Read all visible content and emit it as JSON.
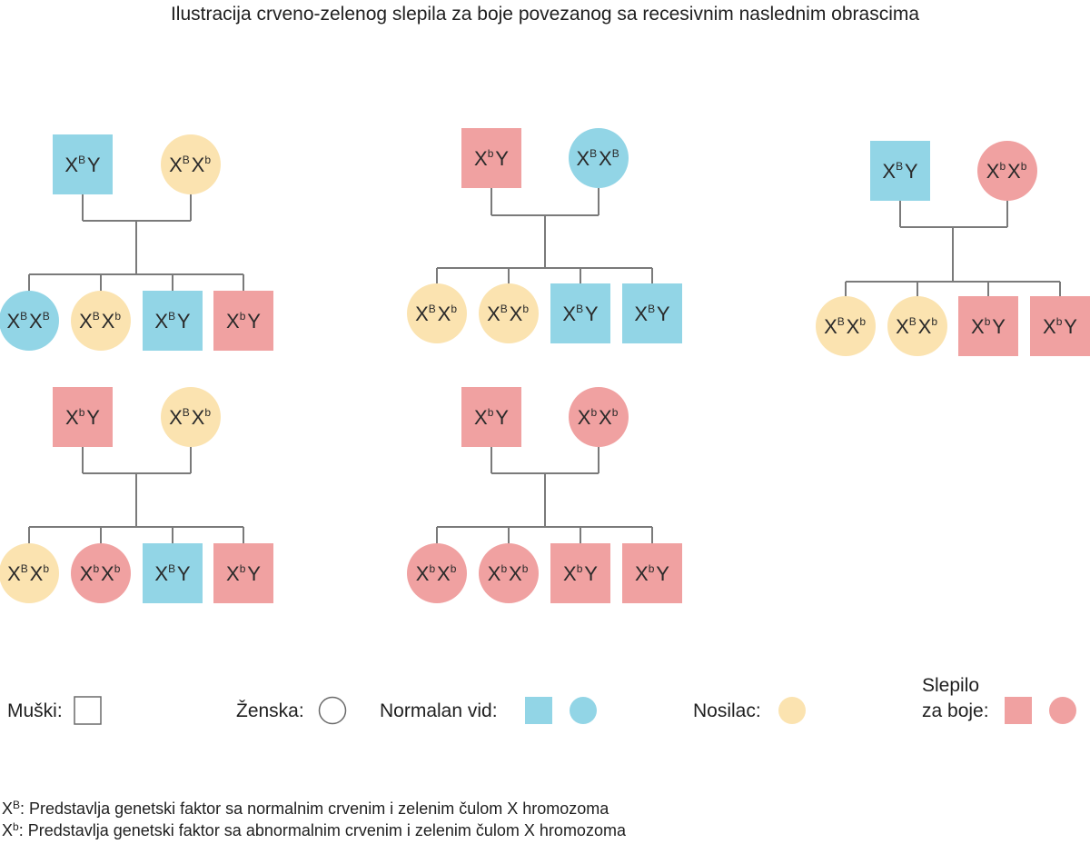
{
  "title": "Ilustracija crveno-zelenog slepila za boje povezanog sa recesivnim naslednim obrascima",
  "colors": {
    "normal": "#92d5e6",
    "carrier": "#fbe3b0",
    "blind": "#f0a1a1",
    "line": "#7a7a7a"
  },
  "families": [
    {
      "father": {
        "shape": "square",
        "status": "normal",
        "genotype": [
          "X",
          "B",
          "Y",
          ""
        ]
      },
      "mother": {
        "shape": "circle",
        "status": "carrier",
        "genotype": [
          "X",
          "B",
          "X",
          "b"
        ]
      },
      "children": [
        {
          "shape": "circle",
          "status": "normal",
          "genotype": [
            "X",
            "B",
            "X",
            "B"
          ]
        },
        {
          "shape": "circle",
          "status": "carrier",
          "genotype": [
            "X",
            "B",
            "X",
            "b"
          ]
        },
        {
          "shape": "square",
          "status": "normal",
          "genotype": [
            "X",
            "B",
            "Y",
            ""
          ]
        },
        {
          "shape": "square",
          "status": "blind",
          "genotype": [
            "X",
            "b",
            "Y",
            ""
          ]
        }
      ]
    },
    {
      "father": {
        "shape": "square",
        "status": "blind",
        "genotype": [
          "X",
          "b",
          "Y",
          ""
        ]
      },
      "mother": {
        "shape": "circle",
        "status": "normal",
        "genotype": [
          "X",
          "B",
          "X",
          "B"
        ]
      },
      "children": [
        {
          "shape": "circle",
          "status": "carrier",
          "genotype": [
            "X",
            "B",
            "X",
            "b"
          ]
        },
        {
          "shape": "circle",
          "status": "carrier",
          "genotype": [
            "X",
            "B",
            "X",
            "b"
          ]
        },
        {
          "shape": "square",
          "status": "normal",
          "genotype": [
            "X",
            "B",
            "Y",
            ""
          ]
        },
        {
          "shape": "square",
          "status": "normal",
          "genotype": [
            "X",
            "B",
            "Y",
            ""
          ]
        }
      ]
    },
    {
      "father": {
        "shape": "square",
        "status": "normal",
        "genotype": [
          "X",
          "B",
          "Y",
          ""
        ]
      },
      "mother": {
        "shape": "circle",
        "status": "blind",
        "genotype": [
          "X",
          "b",
          "X",
          "b"
        ]
      },
      "children": [
        {
          "shape": "circle",
          "status": "carrier",
          "genotype": [
            "X",
            "B",
            "X",
            "b"
          ]
        },
        {
          "shape": "circle",
          "status": "carrier",
          "genotype": [
            "X",
            "B",
            "X",
            "b"
          ]
        },
        {
          "shape": "square",
          "status": "blind",
          "genotype": [
            "X",
            "b",
            "Y",
            ""
          ]
        },
        {
          "shape": "square",
          "status": "blind",
          "genotype": [
            "X",
            "b",
            "Y",
            ""
          ]
        }
      ]
    },
    {
      "father": {
        "shape": "square",
        "status": "blind",
        "genotype": [
          "X",
          "b",
          "Y",
          ""
        ]
      },
      "mother": {
        "shape": "circle",
        "status": "carrier",
        "genotype": [
          "X",
          "B",
          "X",
          "b"
        ]
      },
      "children": [
        {
          "shape": "circle",
          "status": "carrier",
          "genotype": [
            "X",
            "B",
            "X",
            "b"
          ]
        },
        {
          "shape": "circle",
          "status": "blind",
          "genotype": [
            "X",
            "b",
            "X",
            "b"
          ]
        },
        {
          "shape": "square",
          "status": "normal",
          "genotype": [
            "X",
            "B",
            "Y",
            ""
          ]
        },
        {
          "shape": "square",
          "status": "blind",
          "genotype": [
            "X",
            "b",
            "Y",
            ""
          ]
        }
      ]
    },
    {
      "father": {
        "shape": "square",
        "status": "blind",
        "genotype": [
          "X",
          "b",
          "Y",
          ""
        ]
      },
      "mother": {
        "shape": "circle",
        "status": "blind",
        "genotype": [
          "X",
          "b",
          "X",
          "b"
        ]
      },
      "children": [
        {
          "shape": "circle",
          "status": "blind",
          "genotype": [
            "X",
            "b",
            "X",
            "b"
          ]
        },
        {
          "shape": "circle",
          "status": "blind",
          "genotype": [
            "X",
            "b",
            "X",
            "b"
          ]
        },
        {
          "shape": "square",
          "status": "blind",
          "genotype": [
            "X",
            "b",
            "Y",
            ""
          ]
        },
        {
          "shape": "square",
          "status": "blind",
          "genotype": [
            "X",
            "b",
            "Y",
            ""
          ]
        }
      ]
    }
  ],
  "legend": {
    "male": "Muški:",
    "female": "Ženska:",
    "normal": "Normalan vid:",
    "carrier": "Nosilac:",
    "blind_line1": "Slepilo",
    "blind_line2": "za boje:"
  },
  "footnotes": [
    {
      "base": "X",
      "sup": "B",
      "text": ": Predstavlja genetski faktor sa normalnim crvenim i zelenim čulom X hromozoma"
    },
    {
      "base": "X",
      "sup": "b",
      "text": ": Predstavlja genetski faktor sa abnormalnim crvenim i zelenim čulom X hromozoma"
    }
  ]
}
